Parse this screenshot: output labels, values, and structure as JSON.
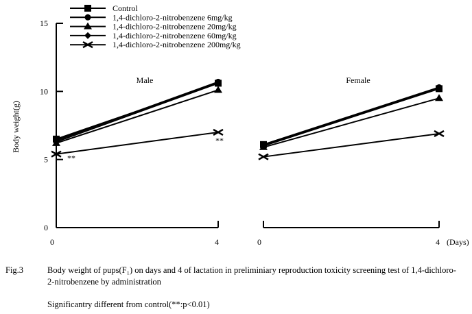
{
  "chart_data": {
    "type": "line",
    "ylabel": "Body weight(g)",
    "xlabel": "(Days)",
    "ylim": [
      0,
      15
    ],
    "yticks": [
      0,
      5,
      10,
      15
    ],
    "x": [
      0,
      4
    ],
    "xtick_labels": [
      "0",
      "4"
    ],
    "grid": false,
    "legend_position": "top-left",
    "panels": [
      {
        "name": "Male",
        "series": [
          {
            "name": "Control",
            "marker": "square",
            "values": [
              6.5,
              10.6
            ]
          },
          {
            "name": "1,4-dichloro-2-nitrobenzene 6mg/kg",
            "marker": "circle",
            "values": [
              6.4,
              10.7
            ]
          },
          {
            "name": "1,4-dichloro-2-nitrobenzene 20mg/kg",
            "marker": "triangle",
            "values": [
              6.2,
              10.1
            ]
          },
          {
            "name": "1,4-dichloro-2-nitrobenzene 60mg/kg",
            "marker": "diamond",
            "values": [
              6.3,
              10.6
            ]
          },
          {
            "name": "1,4-dichloro-2-nitrobenzene 200mg/kg",
            "marker": "x",
            "values": [
              5.4,
              7.0
            ]
          }
        ],
        "annotations": [
          {
            "text": "**",
            "series": 4,
            "x": 0
          },
          {
            "text": "**",
            "series": 4,
            "x": 4
          }
        ]
      },
      {
        "name": "Female",
        "series": [
          {
            "name": "Control",
            "marker": "square",
            "values": [
              6.1,
              10.2
            ]
          },
          {
            "name": "1,4-dichloro-2-nitrobenzene 6mg/kg",
            "marker": "circle",
            "values": [
              6.1,
              10.3
            ]
          },
          {
            "name": "1,4-dichloro-2-nitrobenzene 20mg/kg",
            "marker": "triangle",
            "values": [
              5.9,
              9.5
            ]
          },
          {
            "name": "1,4-dichloro-2-nitrobenzene 60mg/kg",
            "marker": "diamond",
            "values": [
              6.0,
              10.2
            ]
          },
          {
            "name": "1,4-dichloro-2-nitrobenzene 200mg/kg",
            "marker": "x",
            "values": [
              5.2,
              6.9
            ]
          }
        ],
        "annotations": []
      }
    ],
    "legend": [
      "Control",
      "1,4-dichloro-2-nitrobenzene 6mg/kg",
      "1,4-dichloro-2-nitrobenzene 20mg/kg",
      "1,4-dichloro-2-nitrobenzene 60mg/kg",
      "1,4-dichloro-2-nitrobenzene 200mg/kg"
    ]
  },
  "caption": {
    "fig_label": "Fig.3",
    "text": "Body weight of pups(F₁) on days and 4 of lactation in preliminiary reproduction toxicity screening test of 1,4-dichloro-2-nitrobenzene by administration",
    "note": "Significantry different from control(**:p<0.01)"
  }
}
